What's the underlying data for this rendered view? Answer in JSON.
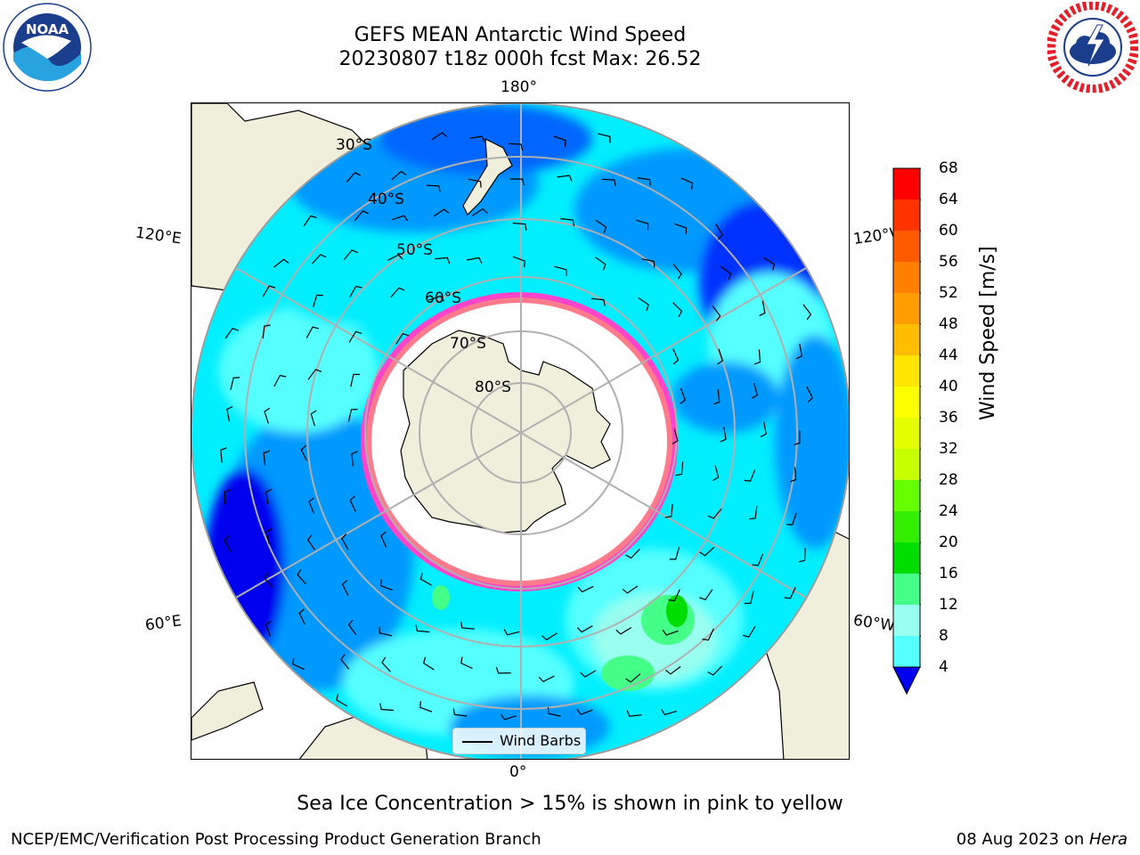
{
  "header": {
    "title_line1": "GEFS MEAN Antarctic Wind Speed",
    "title_line2": "20230807 t18z 000h fcst   Max: 26.52"
  },
  "logos": {
    "noaa": {
      "text": "NOAA",
      "ring_text": "NATIONAL OCEANIC AND ATMOSPHERIC ADMINISTRATION · U.S. DEPARTMENT OF COMMERCE"
    },
    "nws": {
      "ring_text": "NATIONAL WEATHER SERVICE"
    }
  },
  "map": {
    "longitude_labels": {
      "top": "180°",
      "bottom": "0°",
      "upper_left": "120°E",
      "lower_left": "60°E",
      "upper_right": "120°W",
      "lower_right": "60°W"
    },
    "latitude_labels": [
      "30°S",
      "40°S",
      "50°S",
      "60°S",
      "70°S",
      "80°S"
    ],
    "legend_label": "Wind Barbs"
  },
  "colorbar": {
    "label": "Wind Speed [m/s]",
    "ticks": [
      "68",
      "64",
      "60",
      "56",
      "52",
      "48",
      "44",
      "40",
      "36",
      "32",
      "28",
      "24",
      "20",
      "16",
      "12",
      "8",
      "4"
    ],
    "colors": [
      "#ff0000",
      "#ff3300",
      "#ff5a00",
      "#ff7f00",
      "#ff9d00",
      "#ffbd00",
      "#ffe600",
      "#fbff00",
      "#e3ff00",
      "#c5ff00",
      "#66ff00",
      "#33ee00",
      "#00dd00",
      "#44ff88",
      "#99ffee",
      "#55ffff",
      "#00eeff",
      "#0099ff"
    ],
    "extend_min_color": "#0000ee"
  },
  "caption": "Sea Ice Concentration > 15% is shown in pink to yellow",
  "footer": {
    "left": "NCEP/EMC/Verification Post Processing Product Generation Branch",
    "right_date": "08 Aug 2023 on ",
    "right_machine": "Hera"
  }
}
